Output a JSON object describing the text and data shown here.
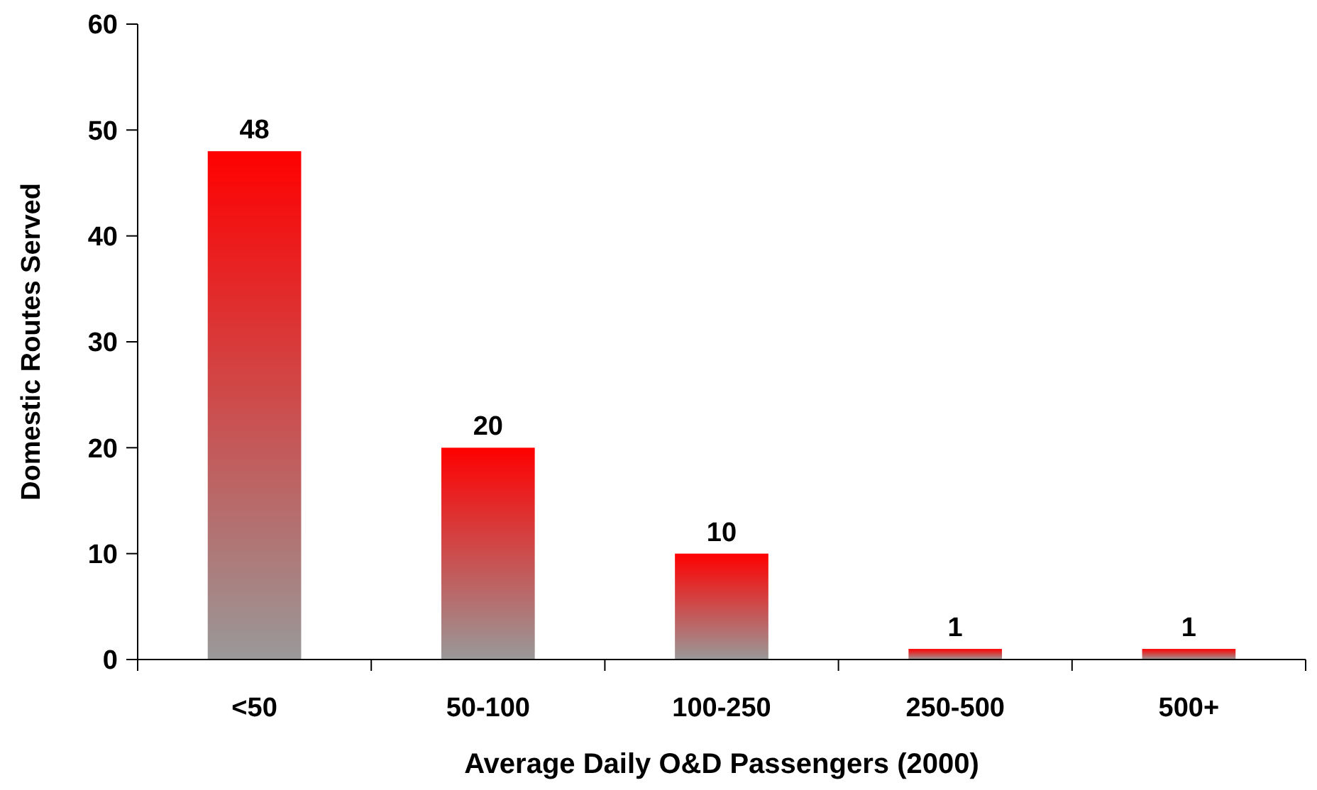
{
  "chart_data": {
    "type": "bar",
    "xlabel": "Average Daily O&D Passengers (2000)",
    "ylabel": "Domestic Routes Served",
    "categories": [
      "<50",
      "50-100",
      "100-250",
      "250-500",
      "500+"
    ],
    "values": [
      48,
      20,
      10,
      1,
      1
    ],
    "color": "#ff0000",
    "ylim": [
      0,
      60
    ],
    "yticks": [
      0,
      10,
      20,
      30,
      40,
      50,
      60
    ],
    "data_labels": true,
    "grid": false
  }
}
